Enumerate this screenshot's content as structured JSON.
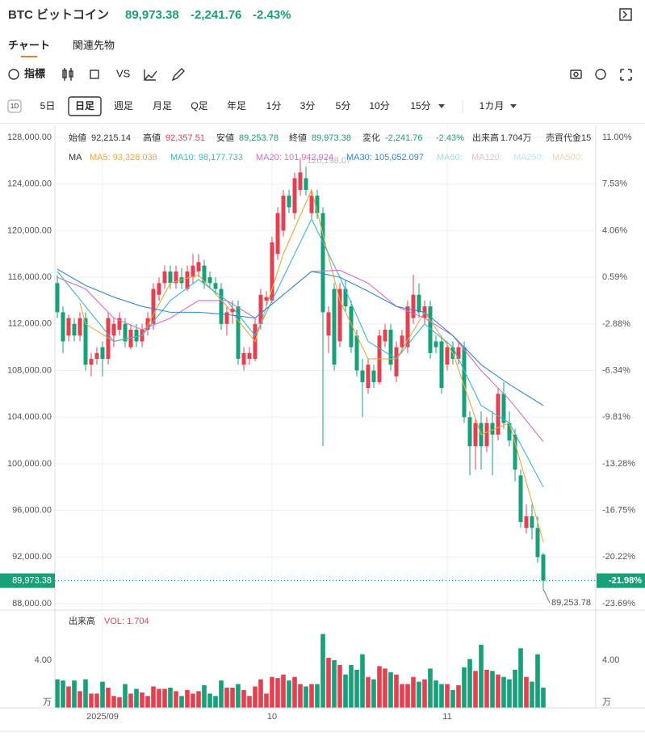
{
  "header": {
    "symbol": "BTC ビットコイン",
    "price": "89,973.38",
    "change": "-2,241.76",
    "change_pct": "-2.43%"
  },
  "tabs": [
    "チャート",
    "関連先物"
  ],
  "toolbar": {
    "indicator": "指標",
    "vs": "VS"
  },
  "timeframes": [
    "5日",
    "日足",
    "週足",
    "月足",
    "Q足",
    "年足",
    "1分",
    "3分",
    "5分",
    "10分",
    "15分",
    "1カ月"
  ],
  "chart_data": {
    "type": "candlestick",
    "up_color": "#e5404f",
    "down_color": "#17a079",
    "info": [
      [
        "始値",
        "92,215.14"
      ],
      [
        "高値",
        "92,357.51"
      ],
      [
        "安値",
        "89,253.78"
      ],
      [
        "終値",
        "89,973.38"
      ],
      [
        "変化",
        "-2,241.76"
      ],
      [
        "",
        "-2.43%"
      ],
      [
        "出来高",
        "1.704万"
      ],
      [
        "売買代金",
        "15"
      ]
    ],
    "ma_title": "MA",
    "ohlc": [
      [
        115500,
        116200,
        112500,
        113000
      ],
      [
        113000,
        113500,
        109500,
        110500
      ],
      [
        111000,
        112800,
        110500,
        112500
      ],
      [
        112000,
        112500,
        110500,
        111000
      ],
      [
        111000,
        113000,
        110500,
        112500
      ],
      [
        112500,
        113000,
        108000,
        108500
      ],
      [
        108500,
        109500,
        107500,
        109000
      ],
      [
        109000,
        110000,
        108500,
        109500
      ],
      [
        110000,
        110500,
        107500,
        109000
      ],
      [
        109000,
        113000,
        108500,
        112500
      ],
      [
        111000,
        112500,
        110000,
        112000
      ],
      [
        111500,
        113000,
        111000,
        112500
      ],
      [
        112000,
        112500,
        110000,
        110500
      ],
      [
        110000,
        112000,
        109800,
        111500
      ],
      [
        111500,
        112000,
        110000,
        110500
      ],
      [
        110500,
        112000,
        110000,
        111500
      ],
      [
        111500,
        113000,
        111000,
        112500
      ],
      [
        112000,
        115500,
        111500,
        115000
      ],
      [
        114500,
        116000,
        114000,
        115500
      ],
      [
        115500,
        117000,
        115000,
        116500
      ],
      [
        116500,
        117000,
        115000,
        115500
      ],
      [
        115500,
        117000,
        115000,
        116500
      ],
      [
        116000,
        116800,
        115000,
        115500
      ],
      [
        115000,
        117000,
        114800,
        116500
      ],
      [
        116000,
        118000,
        115500,
        117000
      ],
      [
        116500,
        118000,
        116000,
        117300
      ],
      [
        117000,
        117500,
        115000,
        115500
      ],
      [
        116000,
        116500,
        115000,
        115500
      ],
      [
        115500,
        116000,
        114500,
        115000
      ],
      [
        115000,
        115500,
        111500,
        112000
      ],
      [
        112000,
        113500,
        111000,
        113000
      ],
      [
        113000,
        114000,
        112000,
        113300
      ],
      [
        113500,
        114000,
        108500,
        109000
      ],
      [
        108500,
        110000,
        108000,
        109500
      ],
      [
        109000,
        110000,
        108500,
        109500
      ],
      [
        109000,
        112500,
        108800,
        112000
      ],
      [
        112000,
        115000,
        111500,
        114500
      ],
      [
        114000,
        114800,
        113500,
        114300
      ],
      [
        114000,
        119500,
        113800,
        119000
      ],
      [
        118000,
        122000,
        117500,
        121500
      ],
      [
        120000,
        123500,
        119500,
        123000
      ],
      [
        123000,
        123500,
        121500,
        122000
      ],
      [
        121500,
        125000,
        121000,
        124500
      ],
      [
        123500,
        126198.07,
        123000,
        125000
      ],
      [
        124500,
        125500,
        123000,
        123500
      ],
      [
        121500,
        123500,
        121000,
        123000
      ],
      [
        123000,
        123500,
        121000,
        121500
      ],
      [
        121500,
        122000,
        101500,
        113000
      ],
      [
        111000,
        113500,
        109500,
        113000
      ],
      [
        115000,
        115500,
        108000,
        108500
      ],
      [
        110500,
        115500,
        110000,
        115000
      ],
      [
        115000,
        115800,
        113000,
        113500
      ],
      [
        113500,
        114000,
        109500,
        110000
      ],
      [
        111000,
        111500,
        107500,
        108000
      ],
      [
        108000,
        109000,
        104000,
        107000
      ],
      [
        106500,
        109000,
        106000,
        108500
      ],
      [
        108000,
        108500,
        106500,
        107000
      ],
      [
        107000,
        111500,
        106800,
        111000
      ],
      [
        110500,
        112000,
        110000,
        111500
      ],
      [
        111500,
        112000,
        108000,
        108500
      ],
      [
        107500,
        110500,
        107000,
        110000
      ],
      [
        110000,
        111500,
        109500,
        111000
      ],
      [
        110000,
        114000,
        109500,
        113500
      ],
      [
        112500,
        116200,
        112000,
        114500
      ],
      [
        114500,
        115500,
        112500,
        113000
      ],
      [
        112500,
        114000,
        112000,
        113500
      ],
      [
        113500,
        114000,
        109000,
        109500
      ],
      [
        110500,
        111000,
        109500,
        110000
      ],
      [
        110500,
        111000,
        106000,
        106500
      ],
      [
        108500,
        110500,
        108000,
        110000
      ],
      [
        110000,
        110500,
        108500,
        109000
      ],
      [
        109000,
        110500,
        108500,
        110000
      ],
      [
        110000,
        110500,
        103500,
        104000
      ],
      [
        104000,
        104500,
        99000,
        101500
      ],
      [
        101500,
        104000,
        99500,
        103500
      ],
      [
        103500,
        104500,
        99500,
        101500
      ],
      [
        101500,
        104000,
        101000,
        103500
      ],
      [
        103500,
        104500,
        99000,
        102500
      ],
      [
        102500,
        106500,
        102000,
        106000
      ],
      [
        106000,
        107000,
        103000,
        103500
      ],
      [
        103500,
        104500,
        101500,
        102000
      ],
      [
        102500,
        103000,
        98500,
        99500
      ],
      [
        99000,
        99500,
        94500,
        95000
      ],
      [
        94500,
        96500,
        94000,
        95500
      ],
      [
        95500,
        96500,
        93500,
        94500
      ],
      [
        94500,
        95500,
        91500,
        92000
      ],
      [
        92215.14,
        92357.51,
        89253.78,
        89973.38
      ]
    ],
    "high_label": "126,198.07",
    "low_label": "89,253.78",
    "price_tag": "89,973.38",
    "pct_tag": "-21.98%",
    "ma": [
      {
        "name": "MA5: 93,328.038",
        "color": "#f0a53c",
        "x": [
          4,
          5,
          10,
          15,
          20,
          25,
          30,
          35,
          40,
          45,
          50,
          55,
          60,
          65,
          70,
          75,
          80,
          86
        ],
        "values": [
          113800,
          112000,
          110500,
          111000,
          115500,
          116200,
          113500,
          110500,
          118000,
          123500,
          114000,
          109000,
          109000,
          113000,
          109500,
          102500,
          103500,
          93300
        ]
      },
      {
        "name": "MA10: 98,177.733",
        "color": "#3cb8d0",
        "x": [
          0,
          5,
          10,
          15,
          20,
          25,
          30,
          35,
          40,
          45,
          50,
          55,
          60,
          65,
          70,
          75,
          80,
          86
        ],
        "values": [
          116500,
          113500,
          110500,
          111000,
          114000,
          115800,
          114000,
          111000,
          116000,
          121000,
          116000,
          110500,
          109000,
          112000,
          110000,
          105000,
          103500,
          98000
        ]
      },
      {
        "name": "MA20: 101,942.924",
        "color": "#d96ad0",
        "x": [
          0,
          5,
          10,
          15,
          20,
          25,
          30,
          35,
          40,
          45,
          50,
          55,
          60,
          65,
          70,
          75,
          80,
          86
        ],
        "values": [
          116000,
          115000,
          112500,
          111500,
          112500,
          114000,
          114000,
          112500,
          114500,
          116500,
          116600,
          115500,
          113500,
          112500,
          111000,
          108000,
          105500,
          101900
        ]
      },
      {
        "name": "MA30: 105,052.097",
        "color": "#2d8bd2",
        "x": [
          0,
          5,
          10,
          15,
          20,
          25,
          30,
          35,
          40,
          45,
          50,
          55,
          60,
          65,
          70,
          75,
          80,
          86
        ],
        "values": [
          116700,
          115300,
          114300,
          113500,
          113000,
          113000,
          112800,
          112500,
          114500,
          116500,
          116000,
          114800,
          113500,
          113000,
          111000,
          108500,
          106800,
          105000
        ]
      }
    ],
    "ma_inactive": [
      {
        "name": "MA60:",
        "color": "#9ee0d8"
      },
      {
        "name": "MA120:",
        "color": "#f4b8c8"
      },
      {
        "name": "MA250:",
        "color": "#a8eef0"
      },
      {
        "name": "MA500:",
        "color": "#f2d49a"
      }
    ],
    "ylim": [
      88000,
      128000
    ],
    "yticks": [
      {
        "value": 88000,
        "label": "88,000.00"
      },
      {
        "value": 92000,
        "label": "92,000.00"
      },
      {
        "value": 96000,
        "label": "96,000.00"
      },
      {
        "value": 100000,
        "label": "100,000.00"
      },
      {
        "value": 104000,
        "label": "104,000.00"
      },
      {
        "value": 108000,
        "label": "108,000.00"
      },
      {
        "value": 112000,
        "label": "112,000.00"
      },
      {
        "value": 116000,
        "label": "116,000.00"
      },
      {
        "value": 120000,
        "label": "120,000.00"
      },
      {
        "value": 124000,
        "label": "124,000.00"
      },
      {
        "value": 128000,
        "label": "128,000.00"
      }
    ],
    "y2lim": [
      -23.69,
      11.0
    ],
    "y2ticks": [
      {
        "value": -23.69,
        "label": "-23.69%"
      },
      {
        "value": -20.22,
        "label": "-20.22%"
      },
      {
        "value": -16.75,
        "label": "-16.75%"
      },
      {
        "value": -13.28,
        "label": "-13.28%"
      },
      {
        "value": -9.81,
        "label": "-9.81%"
      },
      {
        "value": -6.34,
        "label": "-6.34%"
      },
      {
        "value": -2.88,
        "label": "-2.88%"
      },
      {
        "value": 0.59,
        "label": "0.59%"
      },
      {
        "value": 4.06,
        "label": "4.06%"
      },
      {
        "value": 7.53,
        "label": "7.53%"
      },
      {
        "value": 11.0,
        "label": "11.00%"
      }
    ],
    "xticks": [
      {
        "value": 8,
        "label": "2025/09"
      },
      {
        "value": 38,
        "label": "10"
      },
      {
        "value": 69,
        "label": "11"
      }
    ],
    "volume_title": "出来高",
    "volume_label": "VOL: 1.704",
    "volume_unit": "万",
    "volume": [
      2.4,
      2.3,
      1.8,
      2.3,
      1.4,
      2.4,
      1.2,
      1.2,
      2.2,
      1.7,
      1.0,
      0.9,
      2.0,
      1.2,
      1.6,
      1.3,
      1.0,
      1.8,
      1.6,
      1.6,
      1.7,
      1.4,
      1.0,
      1.5,
      1.2,
      1.4,
      1.9,
      1.2,
      1.0,
      2.3,
      1.7,
      1.7,
      2.0,
      1.5,
      1.0,
      1.8,
      2.4,
      1.2,
      2.6,
      2.5,
      2.8,
      2.3,
      2.6,
      2.0,
      1.8,
      2.0,
      2.0,
      6.2,
      4.2,
      4.0,
      3.6,
      2.8,
      3.6,
      3.2,
      4.5,
      2.6,
      2.4,
      3.5,
      3.3,
      3.0,
      2.8,
      2.0,
      2.0,
      2.6,
      2.2,
      2.4,
      3.3,
      2.3,
      2.0,
      2.0,
      1.5,
      1.9,
      3.4,
      4.1,
      3.1,
      5.3,
      3.2,
      3.1,
      2.8,
      2.6,
      2.4,
      3.2,
      5.0,
      2.6,
      2.2,
      4.5,
      1.704
    ],
    "vol_ylim": [
      0,
      7.93
    ],
    "vol_yticks": [
      {
        "value": 4,
        "label": "4.00"
      }
    ],
    "grid": true
  }
}
